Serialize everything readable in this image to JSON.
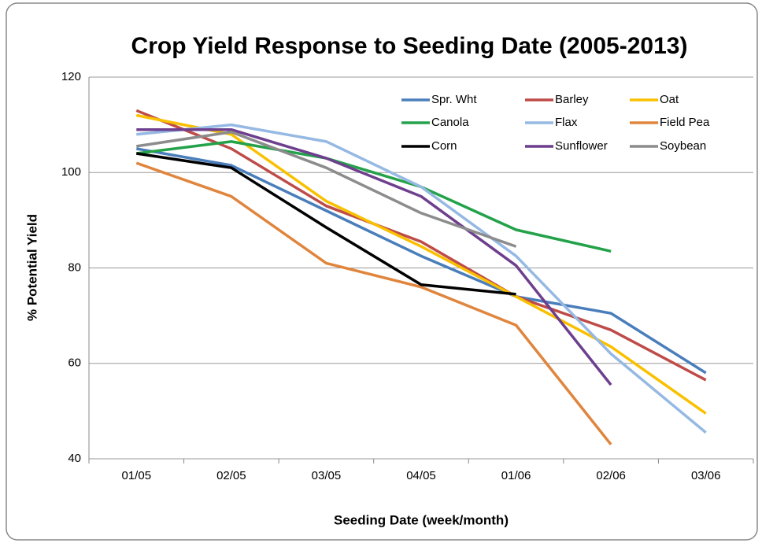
{
  "chart_data": {
    "type": "line",
    "title": "Crop Yield Response to Seeding Date (2005-2013)",
    "x_label": "Seeding Date (week/month)",
    "y_label": "% Potential  Yield",
    "categories": [
      "01/05",
      "02/05",
      "03/05",
      "04/05",
      "01/06",
      "02/06",
      "03/06"
    ],
    "ylim": [
      40,
      120
    ],
    "yticks": [
      40,
      60,
      80,
      100,
      120
    ],
    "grid": true,
    "legend": "top-right",
    "series": [
      {
        "name": "Spr. Wht",
        "color": "#4a7ebb",
        "values": [
          105,
          101.5,
          92,
          82.5,
          74,
          70.5,
          58
        ]
      },
      {
        "name": "Barley",
        "color": "#be4b48",
        "values": [
          113,
          105,
          93,
          85.5,
          74,
          67,
          56.5
        ]
      },
      {
        "name": "Oat",
        "color": "#f9c000",
        "values": [
          112,
          108,
          94,
          84.5,
          74,
          63.5,
          49.5
        ]
      },
      {
        "name": "Canola",
        "color": "#23a24a",
        "values": [
          104,
          106.5,
          103,
          97,
          88,
          83.5,
          null
        ]
      },
      {
        "name": "Flax",
        "color": "#95b9e3",
        "values": [
          108,
          110,
          106.5,
          97,
          82.5,
          62,
          45.5
        ]
      },
      {
        "name": "Field Pea",
        "color": "#e0853d",
        "values": [
          102,
          95,
          81,
          76,
          68,
          43,
          null
        ]
      },
      {
        "name": "Corn",
        "color": "#000000",
        "values": [
          104,
          101,
          88.5,
          76.5,
          74.5,
          null,
          null
        ]
      },
      {
        "name": "Sunflower",
        "color": "#6d3f8e",
        "values": [
          109,
          109,
          103,
          95,
          80.5,
          55.5,
          null
        ]
      },
      {
        "name": "Soybean",
        "color": "#8c8c8c",
        "values": [
          105.5,
          108.5,
          101,
          91.5,
          84.5,
          null,
          null
        ]
      }
    ]
  }
}
